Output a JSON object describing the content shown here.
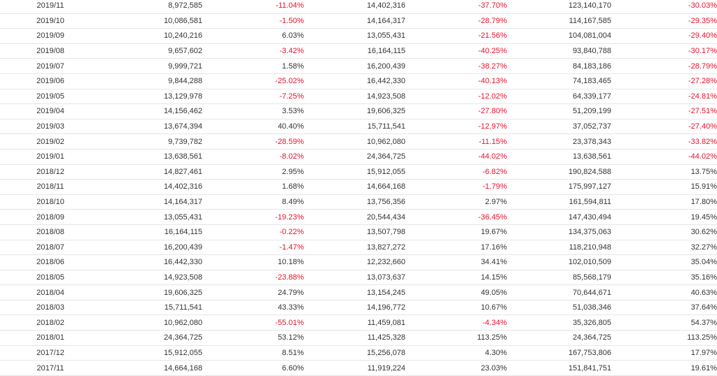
{
  "colors": {
    "negative": "#e8112d",
    "text": "#333333",
    "row_border": "#e6e6e6"
  },
  "rows": [
    {
      "period": "2019/11",
      "value_a": "8,972,585",
      "change_a": "-11.04%",
      "value_b": "14,402,316",
      "change_b": "-37.70%",
      "value_c": "123,140,170",
      "change_c": "-30.03%"
    },
    {
      "period": "2019/10",
      "value_a": "10,086,581",
      "change_a": "-1.50%",
      "value_b": "14,164,317",
      "change_b": "-28.79%",
      "value_c": "114,167,585",
      "change_c": "-29.35%"
    },
    {
      "period": "2019/09",
      "value_a": "10,240,216",
      "change_a": "6.03%",
      "value_b": "13,055,431",
      "change_b": "-21.56%",
      "value_c": "104,081,004",
      "change_c": "-29.40%"
    },
    {
      "period": "2019/08",
      "value_a": "9,657,602",
      "change_a": "-3.42%",
      "value_b": "16,164,115",
      "change_b": "-40.25%",
      "value_c": "93,840,788",
      "change_c": "-30.17%"
    },
    {
      "period": "2019/07",
      "value_a": "9,999,721",
      "change_a": "1.58%",
      "value_b": "16,200,439",
      "change_b": "-38.27%",
      "value_c": "84,183,186",
      "change_c": "-28.79%"
    },
    {
      "period": "2019/06",
      "value_a": "9,844,288",
      "change_a": "-25.02%",
      "value_b": "16,442,330",
      "change_b": "-40.13%",
      "value_c": "74,183,465",
      "change_c": "-27.28%"
    },
    {
      "period": "2019/05",
      "value_a": "13,129,978",
      "change_a": "-7.25%",
      "value_b": "14,923,508",
      "change_b": "-12.02%",
      "value_c": "64,339,177",
      "change_c": "-24.81%"
    },
    {
      "period": "2019/04",
      "value_a": "14,156,462",
      "change_a": "3.53%",
      "value_b": "19,606,325",
      "change_b": "-27.80%",
      "value_c": "51,209,199",
      "change_c": "-27.51%"
    },
    {
      "period": "2019/03",
      "value_a": "13,674,394",
      "change_a": "40.40%",
      "value_b": "15,711,541",
      "change_b": "-12.97%",
      "value_c": "37,052,737",
      "change_c": "-27.40%"
    },
    {
      "period": "2019/02",
      "value_a": "9,739,782",
      "change_a": "-28.59%",
      "value_b": "10,962,080",
      "change_b": "-11.15%",
      "value_c": "23,378,343",
      "change_c": "-33.82%"
    },
    {
      "period": "2019/01",
      "value_a": "13,638,561",
      "change_a": "-8.02%",
      "value_b": "24,364,725",
      "change_b": "-44.02%",
      "value_c": "13,638,561",
      "change_c": "-44.02%"
    },
    {
      "period": "2018/12",
      "value_a": "14,827,461",
      "change_a": "2.95%",
      "value_b": "15,912,055",
      "change_b": "-6.82%",
      "value_c": "190,824,588",
      "change_c": "13.75%"
    },
    {
      "period": "2018/11",
      "value_a": "14,402,316",
      "change_a": "1.68%",
      "value_b": "14,664,168",
      "change_b": "-1.79%",
      "value_c": "175,997,127",
      "change_c": "15.91%"
    },
    {
      "period": "2018/10",
      "value_a": "14,164,317",
      "change_a": "8.49%",
      "value_b": "13,756,356",
      "change_b": "2.97%",
      "value_c": "161,594,811",
      "change_c": "17.80%"
    },
    {
      "period": "2018/09",
      "value_a": "13,055,431",
      "change_a": "-19.23%",
      "value_b": "20,544,434",
      "change_b": "-36.45%",
      "value_c": "147,430,494",
      "change_c": "19.45%"
    },
    {
      "period": "2018/08",
      "value_a": "16,164,115",
      "change_a": "-0.22%",
      "value_b": "13,507,798",
      "change_b": "19.67%",
      "value_c": "134,375,063",
      "change_c": "30.62%"
    },
    {
      "period": "2018/07",
      "value_a": "16,200,439",
      "change_a": "-1.47%",
      "value_b": "13,827,272",
      "change_b": "17.16%",
      "value_c": "118,210,948",
      "change_c": "32.27%"
    },
    {
      "period": "2018/06",
      "value_a": "16,442,330",
      "change_a": "10.18%",
      "value_b": "12,232,660",
      "change_b": "34.41%",
      "value_c": "102,010,509",
      "change_c": "35.04%"
    },
    {
      "period": "2018/05",
      "value_a": "14,923,508",
      "change_a": "-23.88%",
      "value_b": "13,073,637",
      "change_b": "14.15%",
      "value_c": "85,568,179",
      "change_c": "35.16%"
    },
    {
      "period": "2018/04",
      "value_a": "19,606,325",
      "change_a": "24.79%",
      "value_b": "13,154,245",
      "change_b": "49.05%",
      "value_c": "70,644,671",
      "change_c": "40.63%"
    },
    {
      "period": "2018/03",
      "value_a": "15,711,541",
      "change_a": "43.33%",
      "value_b": "14,196,772",
      "change_b": "10.67%",
      "value_c": "51,038,346",
      "change_c": "37.64%"
    },
    {
      "period": "2018/02",
      "value_a": "10,962,080",
      "change_a": "-55.01%",
      "value_b": "11,459,081",
      "change_b": "-4.34%",
      "value_c": "35,326,805",
      "change_c": "54.37%"
    },
    {
      "period": "2018/01",
      "value_a": "24,364,725",
      "change_a": "53.12%",
      "value_b": "11,425,328",
      "change_b": "113.25%",
      "value_c": "24,364,725",
      "change_c": "113.25%"
    },
    {
      "period": "2017/12",
      "value_a": "15,912,055",
      "change_a": "8.51%",
      "value_b": "15,256,078",
      "change_b": "4.30%",
      "value_c": "167,753,806",
      "change_c": "17.97%"
    },
    {
      "period": "2017/11",
      "value_a": "14,664,168",
      "change_a": "6.60%",
      "value_b": "11,919,224",
      "change_b": "23.03%",
      "value_c": "151,841,751",
      "change_c": "19.61%"
    }
  ]
}
